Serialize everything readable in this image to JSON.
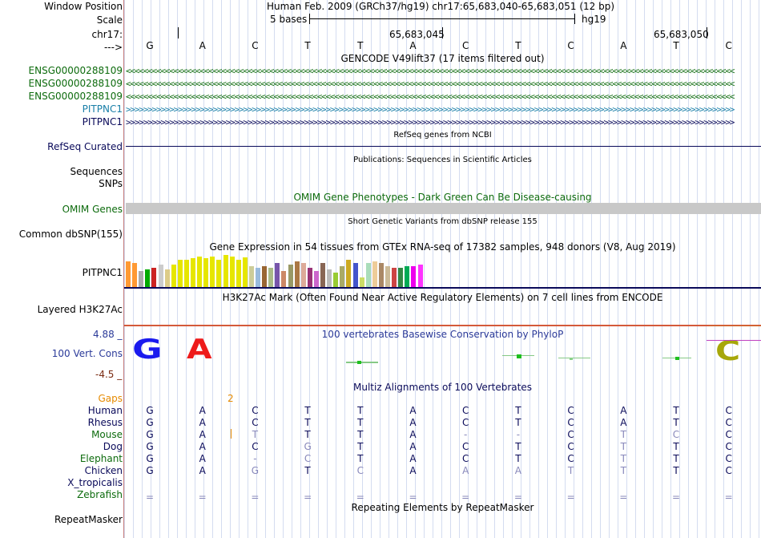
{
  "header": {
    "window_position_label": "Window Position",
    "window_position_value": "Human Feb. 2009 (GRCh37/hg19)   chr17:65,683,040-65,683,051 (12 bp)",
    "scale_label": "Scale",
    "scale_left": "5 bases",
    "scale_right": "hg19",
    "chrom_label": "chr17:",
    "coord1": "65,683,045",
    "coord2": "65,683,050",
    "strand_label": "--->",
    "bases": [
      "G",
      "A",
      "C",
      "T",
      "T",
      "A",
      "C",
      "T",
      "C",
      "A",
      "T",
      "C"
    ]
  },
  "tracks": {
    "gencode_title": "GENCODE V49lift37 (17 items filtered out)",
    "genes": [
      {
        "name": "ENSG00000288109",
        "color": "#0d6b0d",
        "direction": "<"
      },
      {
        "name": "ENSG00000288109",
        "color": "#0d6b0d",
        "direction": "<"
      },
      {
        "name": "ENSG00000288109",
        "color": "#0d6b0d",
        "direction": "<"
      },
      {
        "name": "PITPNC1",
        "color": "#1a7fa8",
        "direction": ">"
      },
      {
        "name": "PITPNC1",
        "color": "#0a0a5a",
        "direction": ">"
      }
    ],
    "refseq_title": "RefSeq genes from NCBI",
    "refseq_label": "RefSeq Curated",
    "pubs_title": "Publications: Sequences in Scientific Articles",
    "sequences_label": "Sequences",
    "snps_label": "SNPs",
    "omim_title": "OMIM Gene Phenotypes - Dark Green Can Be Disease-causing",
    "omim_label": "OMIM Genes",
    "dbsnp_title": "Short Genetic Variants from dbSNP release 155",
    "dbsnp_label": "Common dbSNP(155)",
    "gtex_title": "Gene Expression in 54 tissues from GTEx RNA-seq of 17382 samples, 948 donors (V8, Aug 2019)",
    "gtex_label": "PITPNC1",
    "gtex_values": [
      32,
      30,
      20,
      22,
      24,
      28,
      22,
      28,
      34,
      34,
      36,
      38,
      36,
      38,
      34,
      40,
      38,
      34,
      37,
      26,
      24,
      26,
      24,
      30,
      20,
      28,
      32,
      30,
      24,
      20,
      30,
      22,
      18,
      26,
      34,
      30,
      12,
      30,
      32,
      30,
      26,
      24,
      24,
      26,
      26,
      28
    ],
    "gtex_colors": [
      "#ff9933",
      "#ff9933",
      "#aaaaaa",
      "#00aa00",
      "#cc2222",
      "#cccccc",
      "#ddcc88",
      "#e6e600",
      "#e6e600",
      "#e6e600",
      "#e6e600",
      "#e6e600",
      "#e6e600",
      "#e6e600",
      "#e6e600",
      "#e6e600",
      "#e6e600",
      "#e6e600",
      "#e6e600",
      "#cccc99",
      "#99bbdd",
      "#996633",
      "#aabb88",
      "#7755aa",
      "#cc8866",
      "#999966",
      "#aa7744",
      "#ddaa99",
      "#993377",
      "#cc66cc",
      "#886655",
      "#bbbbbb",
      "#99cc33",
      "#aaaa66",
      "#ccaa22",
      "#4455cc",
      "#ccdd66",
      "#aaddbb",
      "#eecc99",
      "#aa8866",
      "#ccbb99",
      "#cc4444",
      "#338844",
      "#00aa55",
      "#ee00ee",
      "#ff33ff"
    ],
    "h3k_title": "H3K27Ac Mark (Often Found Near Active Regulatory Elements) on 7 cell lines from ENCODE",
    "h3k_label": "Layered H3K27Ac",
    "cons_title": "100 vertebrates Basewise Conservation by PhyloP",
    "cons_label": "100 Vert. Cons",
    "cons_max": "4.88 _",
    "cons_min": "-4.5 _",
    "cons_logo": [
      "G",
      "A",
      "C"
    ],
    "multiz_title": "Multiz Alignments of 100 Vertebrates",
    "gaps_label": "Gaps",
    "gaps_value": "2",
    "species": [
      {
        "name": "Human",
        "color": "#0a0a5a",
        "seq": [
          "G",
          "A",
          "C",
          "T",
          "T",
          "A",
          "C",
          "T",
          "C",
          "A",
          "T",
          "C"
        ]
      },
      {
        "name": "Rhesus",
        "color": "#0a0a5a",
        "seq": [
          "G",
          "A",
          "C",
          "T",
          "T",
          "A",
          "C",
          "T",
          "C",
          "A",
          "T",
          "C"
        ]
      },
      {
        "name": "Mouse",
        "color": "#0d6b0d",
        "seq": [
          "G",
          "A",
          "T",
          "T",
          "T",
          "A",
          "-",
          "-",
          "C",
          "T",
          "C",
          "C"
        ]
      },
      {
        "name": "Dog",
        "color": "#0a0a5a",
        "seq": [
          "G",
          "A",
          "C",
          "G",
          "T",
          "A",
          "C",
          "T",
          "C",
          "T",
          "T",
          "C"
        ]
      },
      {
        "name": "Elephant",
        "color": "#0d6b0d",
        "seq": [
          "G",
          "A",
          "-",
          "C",
          "T",
          "A",
          "C",
          "T",
          "C",
          "T",
          "T",
          "C"
        ]
      },
      {
        "name": "Chicken",
        "color": "#0a0a5a",
        "seq": [
          "G",
          "A",
          "G",
          "T",
          "C",
          "A",
          "A",
          "A",
          "T",
          "T",
          "T",
          "C"
        ]
      },
      {
        "name": "X_tropicalis",
        "color": "#0a0a5a",
        "seq": []
      },
      {
        "name": "Zebrafish",
        "color": "#0d6b0d",
        "seq": [
          "=",
          "=",
          "=",
          "=",
          "=",
          "=",
          "=",
          "=",
          "=",
          "=",
          "=",
          "="
        ]
      }
    ],
    "repeat_title": "Repeating Elements by RepeatMasker",
    "repeat_label": "RepeatMasker"
  }
}
